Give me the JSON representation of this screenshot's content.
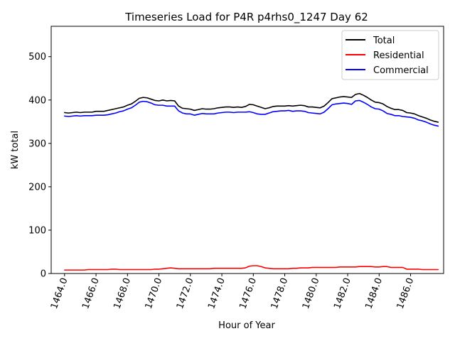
{
  "chart_data": {
    "type": "line",
    "title": "Timeseries Load for P4R p4rhs0_1247  Day 62",
    "xlabel": "Hour of Year",
    "ylabel": "kW total",
    "xlim": [
      1463.15,
      1488.1
    ],
    "ylim": [
      0,
      570
    ],
    "xticks": [
      1464,
      1466,
      1468,
      1470,
      1472,
      1474,
      1476,
      1478,
      1480,
      1482,
      1484,
      1486
    ],
    "xtick_labels": [
      "1464.0",
      "1466.0",
      "1468.0",
      "1470.0",
      "1472.0",
      "1474.0",
      "1476.0",
      "1478.0",
      "1480.0",
      "1482.0",
      "1484.0",
      "1486.0"
    ],
    "yticks": [
      0,
      100,
      200,
      300,
      400,
      500
    ],
    "ytick_labels": [
      "0",
      "100",
      "200",
      "300",
      "400",
      "500"
    ],
    "legend_position": "top-right",
    "x": [
      1464.0,
      1464.25,
      1464.5,
      1464.75,
      1465.0,
      1465.25,
      1465.5,
      1465.75,
      1466.0,
      1466.25,
      1466.5,
      1466.75,
      1467.0,
      1467.25,
      1467.5,
      1467.75,
      1468.0,
      1468.25,
      1468.5,
      1468.75,
      1469.0,
      1469.25,
      1469.5,
      1469.75,
      1470.0,
      1470.25,
      1470.5,
      1470.75,
      1471.0,
      1471.25,
      1471.5,
      1471.75,
      1472.0,
      1472.25,
      1472.5,
      1472.75,
      1473.0,
      1473.25,
      1473.5,
      1473.75,
      1474.0,
      1474.25,
      1474.5,
      1474.75,
      1475.0,
      1475.25,
      1475.5,
      1475.75,
      1476.0,
      1476.25,
      1476.5,
      1476.75,
      1477.0,
      1477.25,
      1477.5,
      1477.75,
      1478.0,
      1478.25,
      1478.5,
      1478.75,
      1479.0,
      1479.25,
      1479.5,
      1479.75,
      1480.0,
      1480.25,
      1480.5,
      1480.75,
      1481.0,
      1481.25,
      1481.5,
      1481.75,
      1482.0,
      1482.25,
      1482.5,
      1482.75,
      1483.0,
      1483.25,
      1483.5,
      1483.75,
      1484.0,
      1484.25,
      1484.5,
      1484.75,
      1485.0,
      1485.25,
      1485.5,
      1485.75,
      1486.0,
      1486.25,
      1486.5,
      1486.75,
      1487.0,
      1487.25,
      1487.5,
      1487.75
    ],
    "series": [
      {
        "name": "Total",
        "color": "#000000",
        "values": [
          371,
          370,
          371,
          372,
          371,
          372,
          372,
          372,
          374,
          374,
          374,
          376,
          378,
          380,
          382,
          384,
          388,
          391,
          397,
          404,
          406,
          405,
          402,
          399,
          398,
          400,
          398,
          399,
          398,
          386,
          381,
          380,
          379,
          376,
          378,
          380,
          379,
          379,
          380,
          382,
          383,
          384,
          384,
          383,
          384,
          383,
          385,
          390,
          389,
          386,
          383,
          380,
          382,
          385,
          386,
          386,
          386,
          387,
          386,
          387,
          388,
          387,
          384,
          384,
          383,
          382,
          386,
          394,
          403,
          405,
          407,
          408,
          407,
          406,
          413,
          415,
          411,
          406,
          400,
          395,
          394,
          391,
          385,
          381,
          378,
          378,
          376,
          371,
          370,
          368,
          364,
          361,
          358,
          354,
          351,
          349
        ]
      },
      {
        "name": "Residential",
        "color": "#ff0000",
        "values": [
          8,
          8,
          8,
          8,
          8,
          8,
          9,
          9,
          9,
          9,
          9,
          9,
          10,
          10,
          9,
          9,
          9,
          9,
          9,
          9,
          9,
          9,
          9,
          10,
          10,
          11,
          12,
          13,
          12,
          11,
          11,
          11,
          11,
          11,
          11,
          11,
          11,
          11,
          12,
          12,
          12,
          12,
          12,
          12,
          12,
          12,
          13,
          17,
          18,
          18,
          16,
          13,
          12,
          11,
          11,
          11,
          11,
          11,
          12,
          12,
          13,
          13,
          13,
          14,
          14,
          14,
          14,
          14,
          14,
          14,
          15,
          15,
          15,
          15,
          15,
          16,
          16,
          16,
          16,
          15,
          15,
          16,
          16,
          14,
          14,
          14,
          14,
          10,
          10,
          10,
          10,
          9,
          9,
          9,
          9,
          9
        ]
      },
      {
        "name": "Commercial",
        "color": "#0000ff",
        "values": [
          363,
          362,
          363,
          364,
          363,
          364,
          364,
          364,
          365,
          365,
          365,
          366,
          368,
          370,
          373,
          375,
          379,
          382,
          388,
          395,
          397,
          396,
          393,
          389,
          388,
          388,
          386,
          386,
          386,
          375,
          370,
          368,
          368,
          365,
          367,
          369,
          368,
          368,
          368,
          370,
          371,
          372,
          372,
          371,
          372,
          372,
          372,
          373,
          371,
          368,
          367,
          367,
          370,
          373,
          374,
          375,
          375,
          376,
          374,
          375,
          375,
          374,
          371,
          370,
          369,
          368,
          372,
          380,
          389,
          391,
          392,
          393,
          392,
          390,
          398,
          399,
          395,
          390,
          384,
          380,
          379,
          375,
          369,
          367,
          364,
          364,
          362,
          361,
          360,
          358,
          354,
          352,
          349,
          345,
          342,
          340
        ]
      }
    ]
  }
}
